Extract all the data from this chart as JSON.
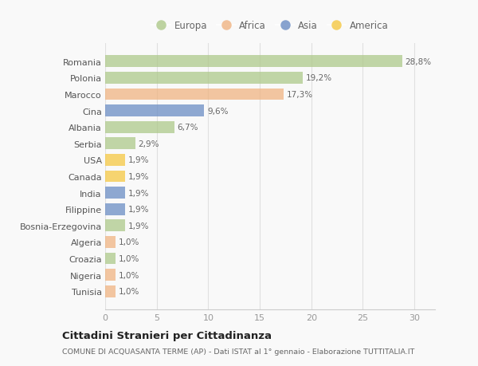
{
  "countries": [
    "Romania",
    "Polonia",
    "Marocco",
    "Cina",
    "Albania",
    "Serbia",
    "USA",
    "Canada",
    "India",
    "Filippine",
    "Bosnia-Erzegovina",
    "Algeria",
    "Croazia",
    "Nigeria",
    "Tunisia"
  ],
  "values": [
    28.8,
    19.2,
    17.3,
    9.6,
    6.7,
    2.9,
    1.9,
    1.9,
    1.9,
    1.9,
    1.9,
    1.0,
    1.0,
    1.0,
    1.0
  ],
  "labels": [
    "28,8%",
    "19,2%",
    "17,3%",
    "9,6%",
    "6,7%",
    "2,9%",
    "1,9%",
    "1,9%",
    "1,9%",
    "1,9%",
    "1,9%",
    "1,0%",
    "1,0%",
    "1,0%",
    "1,0%"
  ],
  "continents": [
    "Europa",
    "Europa",
    "Africa",
    "Asia",
    "Europa",
    "Europa",
    "America",
    "America",
    "Asia",
    "Asia",
    "Europa",
    "Africa",
    "Europa",
    "Africa",
    "Africa"
  ],
  "colors": {
    "Europa": "#aec98a",
    "Africa": "#f0b482",
    "Asia": "#6b8dc4",
    "America": "#f5c842"
  },
  "legend_order": [
    "Europa",
    "Africa",
    "Asia",
    "America"
  ],
  "title": "Cittadini Stranieri per Cittadinanza",
  "subtitle": "COMUNE DI ACQUASANTA TERME (AP) - Dati ISTAT al 1° gennaio - Elaborazione TUTTITALIA.IT",
  "xlim": [
    0,
    32
  ],
  "xticks": [
    0,
    5,
    10,
    15,
    20,
    25,
    30
  ],
  "bg_color": "#f9f9f9",
  "plot_bg_color": "#f9f9f9",
  "grid_color": "#e0e0e0"
}
